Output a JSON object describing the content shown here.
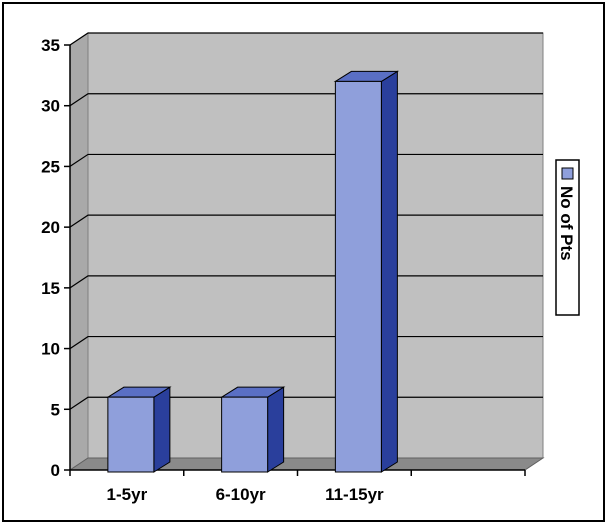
{
  "chart_data": {
    "type": "bar",
    "categories": [
      "1-5yr",
      "6-10yr",
      "11-15yr",
      ""
    ],
    "series": [
      {
        "name": "No of Pts",
        "values": [
          6,
          6,
          32,
          null
        ]
      }
    ],
    "ylim": [
      0,
      35
    ],
    "yticks": [
      0,
      5,
      10,
      15,
      20,
      25,
      30,
      35
    ],
    "grid": true,
    "three_d": true,
    "legend_position": "right",
    "colors": {
      "bar_front": "#8f9fdb",
      "bar_side": "#2a3f9c",
      "bar_top": "#5a6fc4",
      "wall": "#c0c0c0",
      "floor": "#8a8a8a"
    }
  }
}
